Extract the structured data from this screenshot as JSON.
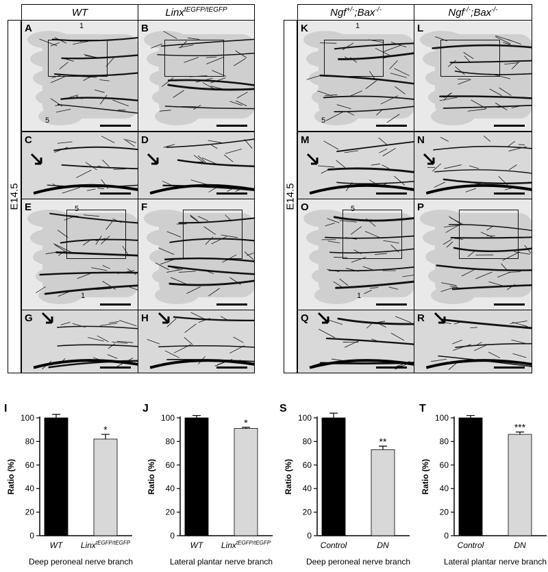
{
  "headers": {
    "wt": "WT",
    "linx_base": "Linx",
    "linx_sup": "tEGFP/tEGFP",
    "ngf_het_base": "Ngf",
    "ngf_het_sup": "+/-",
    "ngf_het_rest": ";Bax",
    "ngf_ko_base": "Ngf",
    "ngf_ko_sup": "-/-",
    "ngf_ko_rest": ";Bax",
    "bax_sup": "-/-"
  },
  "stage_label": "E14.5",
  "panel_labels": [
    "A",
    "B",
    "C",
    "D",
    "E",
    "F",
    "G",
    "H",
    "K",
    "L",
    "M",
    "N",
    "O",
    "P",
    "Q",
    "R"
  ],
  "digit_labels": {
    "d1": "1",
    "d5": "5"
  },
  "chart_data": [
    {
      "panel": "I",
      "type": "bar",
      "categories": [
        "WT",
        "Linx tEGFP/tEGFP"
      ],
      "category_base": [
        "WT",
        "Linx"
      ],
      "category_sup": [
        "",
        "tEGFP/tEGFP"
      ],
      "values": [
        100,
        82
      ],
      "errors": [
        3,
        4
      ],
      "colors": [
        "#000000",
        "#d8d8d8"
      ],
      "significance": [
        "",
        "*"
      ],
      "ylabel": "Ratio (%)",
      "xlabel": "Deep peroneal nerve branch",
      "ylim": [
        0,
        100
      ],
      "yticks": [
        0,
        20,
        40,
        60,
        80,
        100
      ]
    },
    {
      "panel": "J",
      "type": "bar",
      "categories": [
        "WT",
        "Linx tEGFP/tEGFP"
      ],
      "category_base": [
        "WT",
        "Linx"
      ],
      "category_sup": [
        "",
        "tEGFP/tEGFP"
      ],
      "values": [
        100,
        91
      ],
      "errors": [
        2,
        1
      ],
      "colors": [
        "#000000",
        "#d8d8d8"
      ],
      "significance": [
        "",
        "*"
      ],
      "ylabel": "Ratio (%)",
      "xlabel": "Lateral plantar nerve branch",
      "ylim": [
        0,
        100
      ],
      "yticks": [
        0,
        20,
        40,
        60,
        80,
        100
      ]
    },
    {
      "panel": "S",
      "type": "bar",
      "categories": [
        "Control",
        "DN"
      ],
      "category_base": [
        "Control",
        "DN"
      ],
      "category_sup": [
        "",
        ""
      ],
      "values": [
        100,
        73
      ],
      "errors": [
        4,
        3
      ],
      "colors": [
        "#000000",
        "#d8d8d8"
      ],
      "significance": [
        "",
        "**"
      ],
      "ylabel": "Ratio (%)",
      "xlabel": "Deep peroneal nerve branch",
      "ylim": [
        0,
        100
      ],
      "yticks": [
        0,
        20,
        40,
        60,
        80,
        100
      ]
    },
    {
      "panel": "T",
      "type": "bar",
      "categories": [
        "Control",
        "DN"
      ],
      "category_base": [
        "Control",
        "DN"
      ],
      "category_sup": [
        "",
        ""
      ],
      "values": [
        100,
        86
      ],
      "errors": [
        2,
        2
      ],
      "colors": [
        "#000000",
        "#d8d8d8"
      ],
      "significance": [
        "",
        "***"
      ],
      "ylabel": "Ratio (%)",
      "xlabel": "Lateral plantar nerve branch",
      "ylim": [
        0,
        100
      ],
      "yticks": [
        0,
        20,
        40,
        60,
        80,
        100
      ]
    }
  ]
}
